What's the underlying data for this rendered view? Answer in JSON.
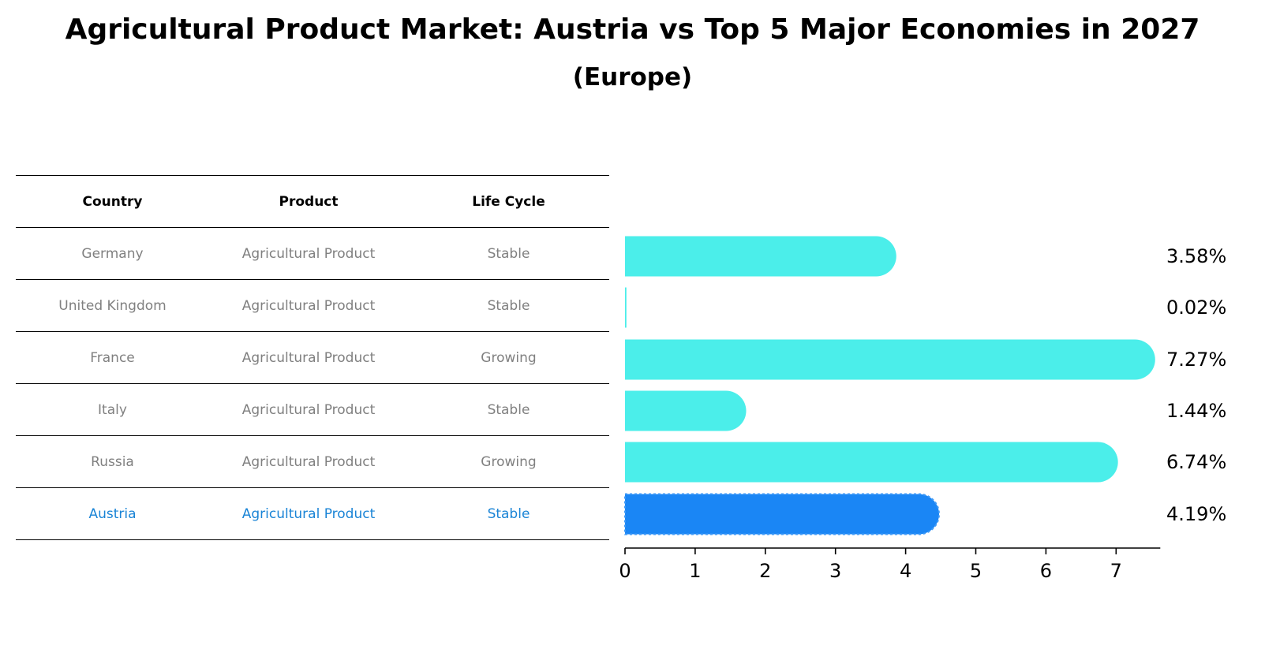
{
  "title": "Agricultural Product Market: Austria vs Top 5 Major Economies in 2027",
  "subtitle": "(Europe)",
  "table": {
    "headers": [
      "Country",
      "Product",
      "Life Cycle"
    ],
    "rows": [
      [
        "Germany",
        "Agricultural Product",
        "Stable"
      ],
      [
        "United Kingdom",
        "Agricultural Product",
        "Stable"
      ],
      [
        "France",
        "Agricultural Product",
        "Growing"
      ],
      [
        "Italy",
        "Agricultural Product",
        "Stable"
      ],
      [
        "Russia",
        "Agricultural Product",
        "Growing"
      ],
      [
        "Austria",
        "Agricultural Product",
        "Stable"
      ]
    ],
    "highlight_row": "Austria"
  },
  "chart_data": {
    "type": "bar",
    "orientation": "horizontal",
    "categories": [
      "Germany",
      "United Kingdom",
      "France",
      "Italy",
      "Russia",
      "Austria"
    ],
    "values": [
      3.58,
      0.02,
      7.27,
      1.44,
      6.74,
      4.19
    ],
    "value_labels": [
      "3.58%",
      "0.02%",
      "7.27%",
      "1.44%",
      "6.74%",
      "4.19%"
    ],
    "xlim": [
      0,
      7.63
    ],
    "xticks": [
      0,
      1,
      2,
      3,
      4,
      5,
      6,
      7
    ],
    "grid": false,
    "colors": {
      "default": "#4beeea",
      "highlight": "#1a86f5"
    },
    "highlight_category": "Austria"
  }
}
